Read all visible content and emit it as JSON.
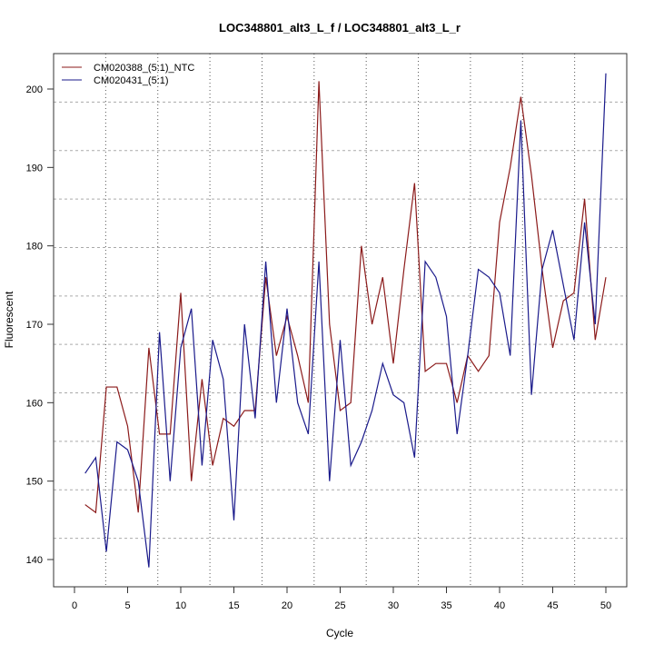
{
  "chart_data": {
    "type": "line",
    "title": "LOC348801_alt3_L_f / LOC348801_alt3_L_r",
    "xlabel": "Cycle",
    "ylabel": "Fluorescent",
    "xlim": [
      -2,
      52
    ],
    "ylim": [
      136.5,
      205
    ],
    "x_ticks": [
      0,
      5,
      10,
      15,
      20,
      25,
      30,
      35,
      40,
      45,
      50
    ],
    "y_ticks": [
      140,
      150,
      160,
      170,
      180,
      190,
      200
    ],
    "grid": true,
    "legend_position": "top-left",
    "x": [
      1,
      2,
      3,
      4,
      5,
      6,
      7,
      8,
      9,
      10,
      11,
      12,
      13,
      14,
      15,
      16,
      17,
      18,
      19,
      20,
      21,
      22,
      23,
      24,
      25,
      26,
      27,
      28,
      29,
      30,
      31,
      32,
      33,
      34,
      35,
      36,
      37,
      38,
      39,
      40,
      41,
      42,
      43,
      44,
      45,
      46,
      47,
      48,
      49,
      50
    ],
    "series": [
      {
        "name": "CM020388_(5:1)_NTC",
        "color": "#8b1a1a",
        "values": [
          147,
          146,
          162,
          162,
          157,
          146,
          167,
          156,
          156,
          174,
          150,
          163,
          152,
          158,
          157,
          159,
          159,
          176,
          166,
          171,
          166,
          160,
          201,
          170,
          159,
          160,
          180,
          170,
          176,
          165,
          177,
          188,
          164,
          165,
          165,
          160,
          166,
          164,
          166,
          183,
          190,
          199,
          189,
          177,
          167,
          173,
          174,
          186,
          168,
          176
        ]
      },
      {
        "name": "CM020431_(5:1)",
        "color": "#1a1a8b",
        "values": [
          151,
          153,
          141,
          155,
          154,
          150,
          139,
          169,
          150,
          167,
          172,
          152,
          168,
          163,
          145,
          170,
          158,
          178,
          160,
          172,
          160,
          156,
          178,
          150,
          168,
          152,
          155,
          159,
          165,
          161,
          160,
          153,
          178,
          176,
          171,
          156,
          166,
          177,
          176,
          174,
          166,
          196,
          161,
          177,
          182,
          175,
          168,
          183,
          170,
          202
        ]
      }
    ]
  }
}
